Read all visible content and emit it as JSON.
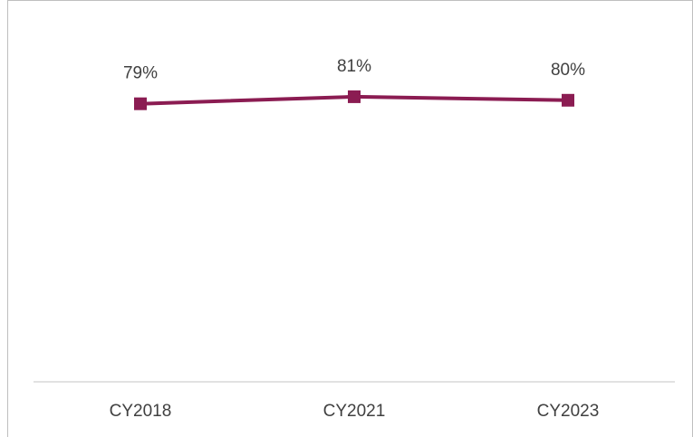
{
  "chart_data": {
    "type": "line",
    "categories": [
      "CY2018",
      "CY2021",
      "CY2023"
    ],
    "values": [
      79,
      81,
      80
    ],
    "value_labels": [
      "79%",
      "81%",
      "80%"
    ],
    "color": "#8b1c52",
    "ylim": [
      0,
      100
    ]
  }
}
